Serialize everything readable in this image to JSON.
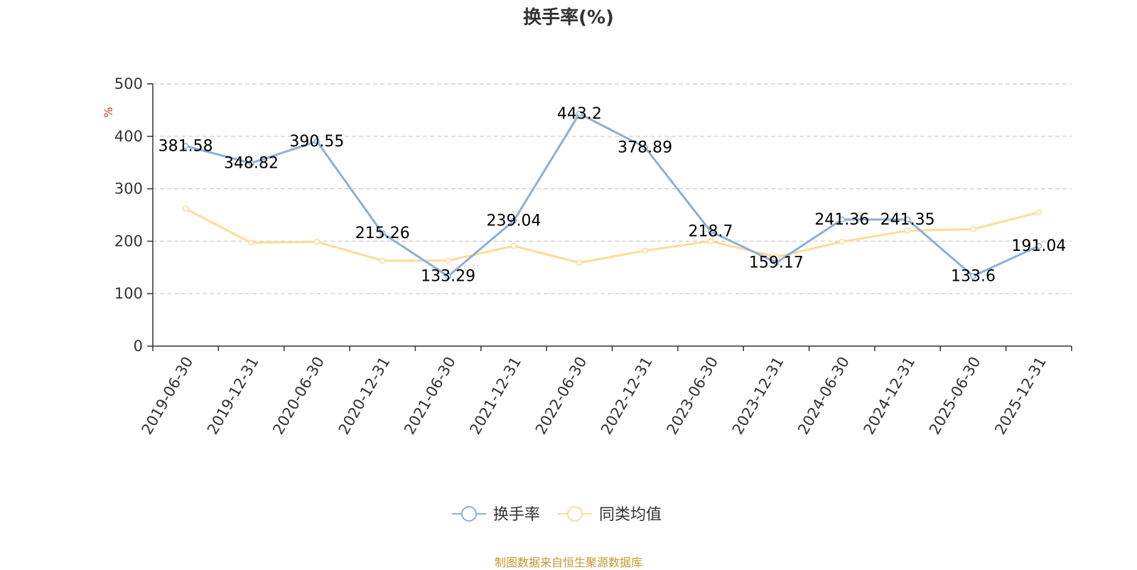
{
  "chart_data": {
    "type": "line",
    "title": "换手率(%)",
    "ylabel": "%",
    "ylim": [
      0,
      500
    ],
    "yticks": [
      0,
      100,
      200,
      300,
      400,
      500
    ],
    "grid": true,
    "legend_position": "bottom-center",
    "categories": [
      "2019-06-30",
      "2019-12-31",
      "2020-06-30",
      "2020-12-31",
      "2021-06-30",
      "2021-12-31",
      "2022-06-30",
      "2022-12-31",
      "2023-06-30",
      "2023-12-31",
      "2024-06-30",
      "2024-12-31",
      "2025-06-30",
      "2025-12-31"
    ],
    "series": [
      {
        "name": "换手率",
        "color": "#8eaed8",
        "show_labels": true,
        "values": [
          381.58,
          348.82,
          390.55,
          215.26,
          133.29,
          239.04,
          443.2,
          378.89,
          218.7,
          159.17,
          241.36,
          241.35,
          133.6,
          191.04
        ]
      },
      {
        "name": "同类均值",
        "color": "#fcdc96",
        "show_labels": false,
        "values": [
          262,
          197,
          199,
          163,
          163,
          191,
          159,
          182,
          200,
          170,
          199,
          220,
          223,
          255
        ]
      }
    ]
  },
  "source": "制图数据来自恒生聚源数据库",
  "colors": {
    "title": "#333333",
    "axis": "#333333",
    "grid": "#cccccc",
    "unit": "#e03030",
    "source": "#c8962d"
  }
}
